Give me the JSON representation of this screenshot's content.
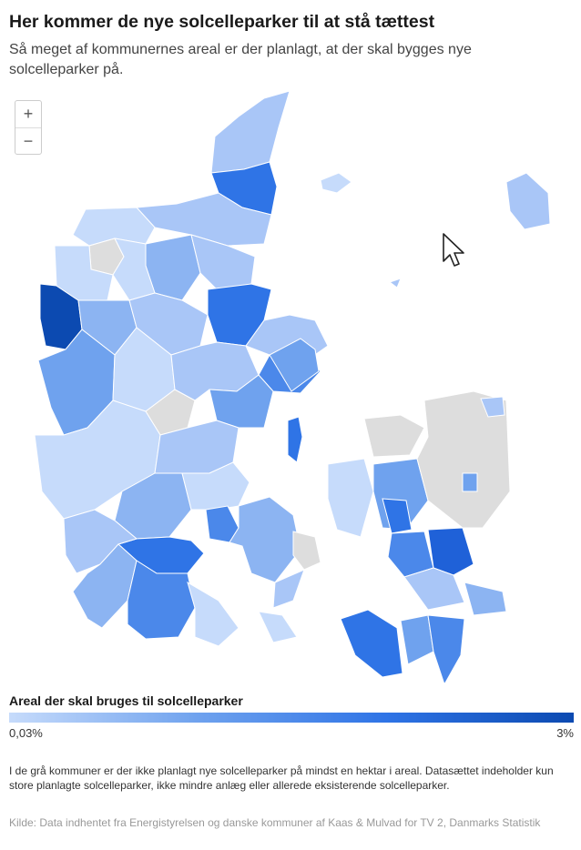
{
  "header": {
    "title": "Her kommer de nye solcelleparker til at stå tættest",
    "subtitle": "Så meget af kommunernes areal er der planlagt, at der skal bygges nye solcelleparker på."
  },
  "zoom": {
    "in_label": "+",
    "out_label": "−"
  },
  "legend": {
    "title": "Areal der skal bruges til solcelleparker",
    "min_label": "0,03%",
    "max_label": "3%",
    "colors": [
      "#c6dbfb",
      "#6fa2ee",
      "#2f74e6",
      "#0c4ab1"
    ],
    "no_data_color": "#dddddd"
  },
  "footer": {
    "note": "I de grå kommuner er der ikke planlagt nye solcelleparker på mindst en hektar i areal. Datasættet indeholder kun store planlagte solcelleparker, ikke mindre anlæg eller allerede eksisterende solcelleparker.",
    "source": "Kilde: Data indhentet fra Energistyrelsen og danske kommuner af Kaas & Mulvad for TV 2, Danmarks Statistik"
  },
  "icons": {
    "cursor": "arrow-cursor-icon"
  }
}
